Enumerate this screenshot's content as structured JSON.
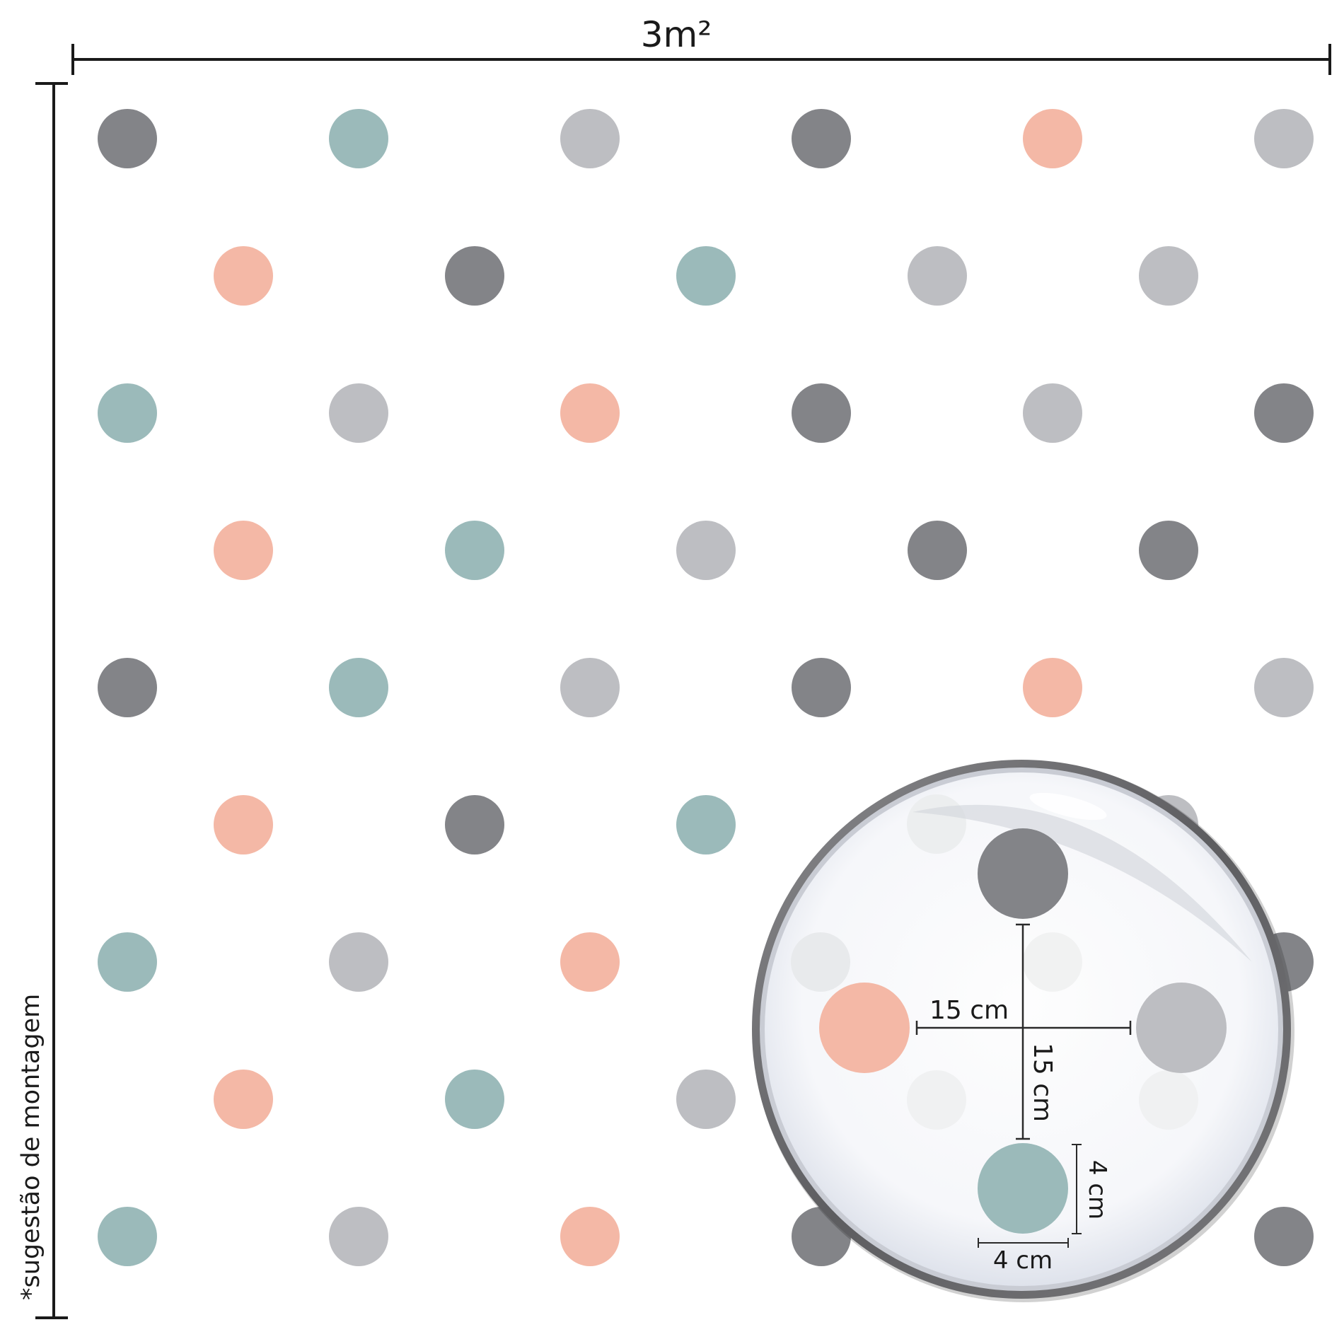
{
  "width_label": "3m²",
  "height_label": "*sugestão de montagem",
  "colors": {
    "dark_gray": "#838488",
    "teal": "#9bbaba",
    "light_gray": "#bdbec2",
    "salmon": "#f4b8a6",
    "line": "#1a1a1a",
    "lens_rim": "#6e6e70"
  },
  "pattern": {
    "rows": [
      [
        "dark_gray",
        "teal",
        "light_gray",
        "dark_gray",
        "salmon",
        "light_gray"
      ],
      [
        "salmon",
        "dark_gray",
        "teal",
        "light_gray",
        "light_gray"
      ],
      [
        "teal",
        "light_gray",
        "salmon",
        "dark_gray",
        "light_gray",
        "dark_gray"
      ],
      [
        "salmon",
        "teal",
        "light_gray",
        "dark_gray",
        "dark_gray"
      ],
      [
        "dark_gray",
        "teal",
        "light_gray",
        "dark_gray",
        "salmon",
        "light_gray"
      ],
      [
        "salmon",
        "dark_gray",
        "teal",
        "light_gray",
        "light_gray"
      ],
      [
        "teal",
        "light_gray",
        "salmon",
        "dark_gray",
        "light_gray",
        "dark_gray"
      ],
      [
        "salmon",
        "teal",
        "light_gray",
        "dark_gray",
        "light_gray"
      ],
      [
        "teal",
        "light_gray",
        "salmon",
        "dark_gray",
        "light_gray",
        "dark_gray"
      ]
    ]
  },
  "magnifier": {
    "spacing_horizontal_label": "15 cm",
    "spacing_vertical_label": "15 cm",
    "dot_height_label": "4 cm",
    "dot_width_label": "4 cm",
    "dots": {
      "top": "dark_gray",
      "left": "salmon",
      "right": "light_gray",
      "bottom": "teal"
    }
  }
}
